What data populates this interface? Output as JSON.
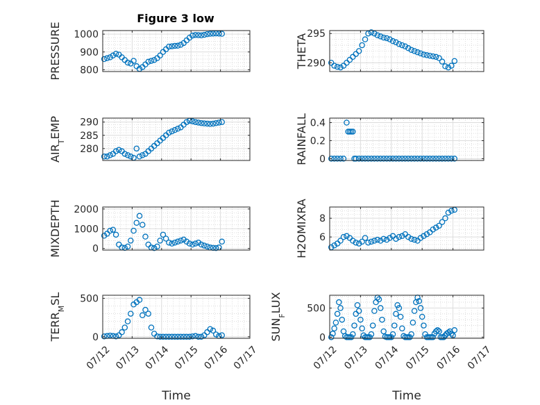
{
  "figure": {
    "title": "Figure 3 low"
  },
  "chart_data": [
    {
      "type": "scatter",
      "ylabel": "PRESSURE",
      "xlabel": "",
      "ylim": [
        790,
        1020
      ],
      "yticks": [
        800,
        900,
        1000
      ],
      "yticklabels": [
        "800",
        "900",
        "1000"
      ],
      "xlim": [
        0,
        5
      ],
      "xticks": [
        0,
        1,
        2,
        3,
        4,
        5
      ],
      "xticklabels": [],
      "series": [
        {
          "x": [
            0.05,
            0.15,
            0.25,
            0.35,
            0.45,
            0.55,
            0.65,
            0.75,
            0.85,
            0.95,
            1.05,
            1.15,
            1.25,
            1.35,
            1.45,
            1.55,
            1.65,
            1.75,
            1.85,
            1.95,
            2.05,
            2.15,
            2.25,
            2.35,
            2.45,
            2.55,
            2.65,
            2.75,
            2.85,
            2.95,
            3.05,
            3.15,
            3.25,
            3.35,
            3.45,
            3.55,
            3.65,
            3.75,
            3.85,
            3.95,
            4.05
          ],
          "y": [
            860,
            865,
            870,
            880,
            890,
            885,
            870,
            855,
            840,
            835,
            850,
            820,
            805,
            815,
            830,
            845,
            850,
            855,
            865,
            880,
            900,
            915,
            930,
            932,
            934,
            935,
            940,
            950,
            965,
            980,
            992,
            995,
            994,
            993,
            996,
            1000,
            1002,
            1003,
            1004,
            1003,
            1002
          ]
        }
      ]
    },
    {
      "type": "scatter",
      "ylabel": "THETA",
      "xlabel": "",
      "ylim": [
        288.5,
        295.5
      ],
      "yticks": [
        290,
        295
      ],
      "yticklabels": [
        "290",
        "295"
      ],
      "xlim": [
        0,
        5
      ],
      "xticks": [
        0,
        1,
        2,
        3,
        4,
        5
      ],
      "xticklabels": [],
      "series": [
        {
          "x": [
            0.05,
            0.15,
            0.25,
            0.35,
            0.45,
            0.55,
            0.65,
            0.75,
            0.85,
            0.95,
            1.05,
            1.15,
            1.25,
            1.35,
            1.45,
            1.55,
            1.65,
            1.75,
            1.85,
            1.95,
            2.05,
            2.15,
            2.25,
            2.35,
            2.45,
            2.55,
            2.65,
            2.75,
            2.85,
            2.95,
            3.05,
            3.15,
            3.25,
            3.35,
            3.45,
            3.55,
            3.65,
            3.75,
            3.85,
            3.95,
            4.05
          ],
          "y": [
            290,
            289.5,
            289.3,
            289.2,
            289.5,
            290,
            290.5,
            291,
            291.5,
            292,
            293,
            294,
            295,
            295.2,
            295,
            294.7,
            294.5,
            294.3,
            294.2,
            294,
            293.7,
            293.5,
            293.2,
            293,
            292.8,
            292.5,
            292.2,
            292,
            291.8,
            291.6,
            291.4,
            291.3,
            291.2,
            291.1,
            291,
            290.8,
            290.2,
            289.4,
            289.2,
            289.5,
            290.3
          ]
        }
      ]
    },
    {
      "type": "scatter",
      "ylabel": "AIR_TEMP",
      "xlabel": "",
      "ylim": [
        275.5,
        291.5
      ],
      "yticks": [
        280,
        285,
        290
      ],
      "yticklabels": [
        "280",
        "285",
        "290"
      ],
      "xlim": [
        0,
        5
      ],
      "xticks": [
        0,
        1,
        2,
        3,
        4,
        5
      ],
      "xticklabels": [],
      "series": [
        {
          "x": [
            0.05,
            0.15,
            0.25,
            0.35,
            0.45,
            0.55,
            0.65,
            0.75,
            0.85,
            0.95,
            1.05,
            1.15,
            1.25,
            1.35,
            1.45,
            1.55,
            1.65,
            1.75,
            1.85,
            1.95,
            2.05,
            2.15,
            2.25,
            2.35,
            2.45,
            2.55,
            2.65,
            2.75,
            2.85,
            2.95,
            3.05,
            3.15,
            3.25,
            3.35,
            3.45,
            3.55,
            3.65,
            3.75,
            3.85,
            3.95,
            4.05
          ],
          "y": [
            277,
            277,
            277.5,
            278,
            279,
            279.5,
            279,
            278,
            277.5,
            277,
            276.5,
            280,
            277,
            277.5,
            278,
            279,
            280,
            281,
            282,
            283,
            284,
            285,
            286,
            286.5,
            287,
            287.5,
            288,
            289,
            290,
            290.5,
            290.3,
            290,
            289.8,
            289.6,
            289.5,
            289.4,
            289.3,
            289.4,
            289.6,
            289.8,
            290
          ]
        }
      ]
    },
    {
      "type": "scatter",
      "ylabel": "RAINFALL",
      "xlabel": "",
      "ylim": [
        -0.02,
        0.45
      ],
      "yticks": [
        0,
        0.2,
        0.4
      ],
      "yticklabels": [
        "0",
        "0.2",
        "0.4"
      ],
      "xlim": [
        0,
        5
      ],
      "xticks": [
        0,
        1,
        2,
        3,
        4,
        5
      ],
      "xticklabels": [],
      "series": [
        {
          "x": [
            0.05,
            0.15,
            0.25,
            0.35,
            0.45,
            0.55,
            0.6,
            0.65,
            0.7,
            0.75,
            0.8,
            0.85,
            0.95,
            1.05,
            1.15,
            1.25,
            1.35,
            1.45,
            1.55,
            1.65,
            1.75,
            1.85,
            1.95,
            2.05,
            2.15,
            2.25,
            2.35,
            2.45,
            2.55,
            2.65,
            2.75,
            2.85,
            2.95,
            3.05,
            3.15,
            3.25,
            3.35,
            3.45,
            3.55,
            3.65,
            3.75,
            3.85,
            3.95,
            4.05
          ],
          "y": [
            0,
            0,
            0,
            0,
            0,
            0.4,
            0.3,
            0.3,
            0.3,
            0.3,
            0,
            0,
            0,
            0,
            0,
            0,
            0,
            0,
            0,
            0,
            0,
            0,
            0,
            0,
            0,
            0,
            0,
            0,
            0,
            0,
            0,
            0,
            0,
            0,
            0,
            0,
            0,
            0,
            0,
            0,
            0,
            0,
            0,
            0
          ]
        }
      ]
    },
    {
      "type": "scatter",
      "ylabel": "MIXDEPTH",
      "xlabel": "",
      "ylim": [
        -80,
        2100
      ],
      "yticks": [
        0,
        1000,
        2000
      ],
      "yticklabels": [
        "0",
        "1000",
        "2000"
      ],
      "xlim": [
        0,
        5
      ],
      "xticks": [
        0,
        1,
        2,
        3,
        4,
        5
      ],
      "xticklabels": [],
      "series": [
        {
          "x": [
            0.05,
            0.15,
            0.25,
            0.35,
            0.45,
            0.55,
            0.65,
            0.75,
            0.85,
            0.95,
            1.05,
            1.15,
            1.25,
            1.35,
            1.45,
            1.55,
            1.65,
            1.75,
            1.85,
            1.95,
            2.05,
            2.15,
            2.25,
            2.35,
            2.45,
            2.55,
            2.65,
            2.75,
            2.85,
            2.95,
            3.05,
            3.15,
            3.25,
            3.35,
            3.45,
            3.55,
            3.65,
            3.75,
            3.85,
            3.95,
            4.05
          ],
          "y": [
            650,
            750,
            900,
            950,
            700,
            200,
            50,
            30,
            100,
            400,
            900,
            1300,
            1650,
            1200,
            600,
            200,
            50,
            20,
            100,
            400,
            700,
            500,
            300,
            250,
            300,
            350,
            400,
            450,
            350,
            250,
            200,
            250,
            300,
            200,
            150,
            100,
            50,
            30,
            20,
            50,
            350
          ]
        }
      ]
    },
    {
      "type": "scatter",
      "ylabel": "H2OMIXRA",
      "xlabel": "",
      "ylim": [
        4.6,
        9.2
      ],
      "yticks": [
        6,
        8
      ],
      "yticklabels": [
        "6",
        "8"
      ],
      "xlim": [
        0,
        5
      ],
      "xticks": [
        0,
        1,
        2,
        3,
        4,
        5
      ],
      "xticklabels": [],
      "series": [
        {
          "x": [
            0.05,
            0.15,
            0.25,
            0.35,
            0.45,
            0.55,
            0.65,
            0.75,
            0.85,
            0.95,
            1.05,
            1.15,
            1.25,
            1.35,
            1.45,
            1.55,
            1.65,
            1.75,
            1.85,
            1.95,
            2.05,
            2.15,
            2.25,
            2.35,
            2.45,
            2.55,
            2.65,
            2.75,
            2.85,
            2.95,
            3.05,
            3.15,
            3.25,
            3.35,
            3.45,
            3.55,
            3.65,
            3.75,
            3.85,
            3.95,
            4.05
          ],
          "y": [
            4.9,
            5.1,
            5.3,
            5.6,
            6.0,
            6.1,
            5.9,
            5.6,
            5.4,
            5.3,
            5.5,
            5.9,
            5.4,
            5.5,
            5.6,
            5.7,
            5.6,
            5.8,
            5.7,
            5.9,
            6.1,
            5.8,
            6.0,
            6.1,
            6.3,
            6.0,
            5.8,
            5.7,
            5.6,
            5.9,
            6.1,
            6.3,
            6.5,
            6.8,
            7.0,
            7.2,
            7.6,
            8.0,
            8.6,
            8.8,
            8.9
          ]
        }
      ]
    },
    {
      "type": "scatter",
      "ylabel": "TERR_MSL",
      "xlabel": "Time",
      "ylim": [
        -20,
        540
      ],
      "yticks": [
        0,
        500
      ],
      "yticklabels": [
        "0",
        "500"
      ],
      "xlim": [
        0,
        5
      ],
      "xticks": [
        0,
        1,
        2,
        3,
        4,
        5
      ],
      "xticklabels": [
        "07/12",
        "07/13",
        "07/14",
        "07/15",
        "07/16",
        "07/17"
      ],
      "series": [
        {
          "x": [
            0.05,
            0.15,
            0.25,
            0.35,
            0.45,
            0.55,
            0.65,
            0.75,
            0.85,
            0.95,
            1.05,
            1.15,
            1.25,
            1.35,
            1.45,
            1.55,
            1.65,
            1.75,
            1.85,
            1.95,
            2.05,
            2.15,
            2.25,
            2.35,
            2.45,
            2.55,
            2.65,
            2.75,
            2.85,
            2.95,
            3.05,
            3.15,
            3.25,
            3.35,
            3.45,
            3.55,
            3.65,
            3.75,
            3.85,
            3.95,
            4.05
          ],
          "y": [
            5,
            10,
            15,
            10,
            5,
            20,
            60,
            120,
            200,
            300,
            420,
            450,
            480,
            280,
            350,
            300,
            120,
            40,
            5,
            0,
            0,
            0,
            0,
            0,
            0,
            0,
            0,
            0,
            0,
            0,
            5,
            10,
            0,
            0,
            20,
            60,
            100,
            80,
            30,
            10,
            20
          ]
        }
      ]
    },
    {
      "type": "scatter",
      "ylabel": "SUN_FLUX",
      "xlabel": "Time",
      "ylim": [
        -20,
        720
      ],
      "yticks": [
        0,
        500
      ],
      "yticklabels": [
        "0",
        "500"
      ],
      "xlim": [
        0,
        5
      ],
      "xticks": [
        0,
        1,
        2,
        3,
        4,
        5
      ],
      "xticklabels": [
        "07/12",
        "07/13",
        "07/14",
        "07/15",
        "07/16",
        "07/17"
      ],
      "series": [
        {
          "x": [
            0.05,
            0.1,
            0.15,
            0.2,
            0.25,
            0.3,
            0.35,
            0.4,
            0.45,
            0.5,
            0.55,
            0.6,
            0.65,
            0.7,
            0.75,
            0.8,
            0.85,
            0.9,
            0.95,
            1.0,
            1.05,
            1.1,
            1.15,
            1.2,
            1.25,
            1.3,
            1.35,
            1.4,
            1.45,
            1.5,
            1.55,
            1.6,
            1.65,
            1.7,
            1.75,
            1.8,
            1.85,
            1.9,
            1.95,
            2.0,
            2.05,
            2.1,
            2.15,
            2.2,
            2.25,
            2.3,
            2.35,
            2.4,
            2.45,
            2.5,
            2.55,
            2.6,
            2.65,
            2.7,
            2.75,
            2.8,
            2.85,
            2.9,
            2.95,
            3.0,
            3.05,
            3.1,
            3.15,
            3.2,
            3.25,
            3.3,
            3.35,
            3.4,
            3.45,
            3.5,
            3.55,
            3.6,
            3.65,
            3.7,
            3.75,
            3.8,
            3.85,
            3.9,
            3.95,
            4.0,
            4.05
          ],
          "y": [
            0,
            60,
            150,
            250,
            400,
            600,
            500,
            300,
            100,
            20,
            0,
            0,
            0,
            0,
            50,
            200,
            400,
            550,
            450,
            300,
            150,
            30,
            0,
            0,
            0,
            0,
            50,
            200,
            450,
            600,
            680,
            650,
            500,
            300,
            100,
            10,
            0,
            0,
            0,
            0,
            50,
            200,
            400,
            550,
            500,
            350,
            150,
            20,
            0,
            0,
            0,
            0,
            50,
            250,
            450,
            600,
            680,
            620,
            500,
            350,
            200,
            50,
            0,
            0,
            0,
            0,
            0,
            60,
            100,
            120,
            100,
            0,
            0,
            0,
            30,
            60,
            80,
            100,
            60,
            30,
            120
          ]
        }
      ]
    }
  ]
}
